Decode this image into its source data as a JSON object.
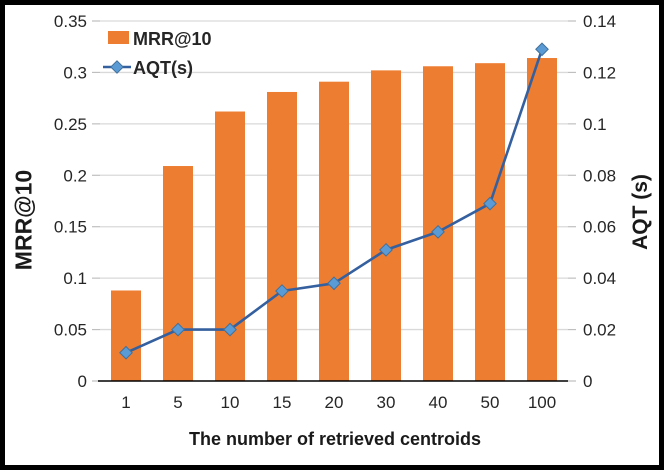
{
  "chart_data": {
    "type": "combo-bar-line",
    "title": "",
    "categories": [
      "1",
      "5",
      "10",
      "15",
      "20",
      "30",
      "40",
      "50",
      "100"
    ],
    "series": [
      {
        "name": "MRR@10",
        "type": "bar",
        "axis": "left",
        "values": [
          0.088,
          0.209,
          0.262,
          0.281,
          0.291,
          0.302,
          0.306,
          0.309,
          0.314
        ],
        "color": "#ED7D31"
      },
      {
        "name": "AQT(s)",
        "type": "line",
        "axis": "right",
        "values": [
          0.011,
          0.02,
          0.02,
          0.035,
          0.038,
          0.051,
          0.058,
          0.069,
          0.129
        ],
        "line_color": "#35609F",
        "marker": "diamond",
        "marker_color": "#5B9BD5",
        "marker_edge_color": "#41719C"
      }
    ],
    "x_axis": {
      "label": "The number of retrieved centroids"
    },
    "left_axis": {
      "label": "MRR@10",
      "min": 0,
      "max": 0.35,
      "step": 0.05,
      "tick_labels": [
        "0",
        "0.05",
        "0.1",
        "0.15",
        "0.2",
        "0.25",
        "0.3",
        "0.35"
      ]
    },
    "right_axis": {
      "label": "AQT (s)",
      "min": 0,
      "max": 0.14,
      "step": 0.02,
      "tick_labels": [
        "0",
        "0.02",
        "0.04",
        "0.06",
        "0.08",
        "0.1",
        "0.12",
        "0.14"
      ]
    },
    "legend": {
      "position": "top-left-inside",
      "entries": [
        "MRR@10",
        "AQT(s)"
      ]
    },
    "grid": true,
    "colors": {
      "gridline": "#D9D9D9",
      "tick_mark": "#BFBFBF",
      "axis_line": "#000000",
      "text": "#262626",
      "frame_border": "#000000",
      "background": "#FFFFFF"
    }
  }
}
